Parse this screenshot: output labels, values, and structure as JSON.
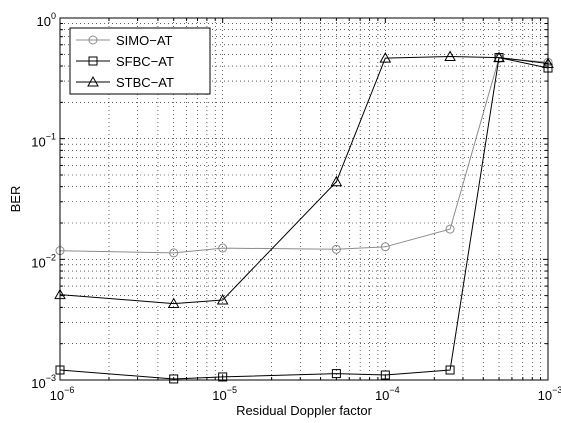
{
  "chart_data": {
    "type": "line",
    "xlabel": "Residual Doppler factor",
    "ylabel": "BER",
    "xscale": "log",
    "yscale": "log",
    "xlim": [
      1e-06,
      0.001
    ],
    "ylim": [
      0.001,
      1
    ],
    "grid": true,
    "legend_position": "top-left",
    "x_ticks": [
      {
        "value": 1e-06,
        "base": "10",
        "exp": "−6"
      },
      {
        "value": 1e-05,
        "base": "10",
        "exp": "−5"
      },
      {
        "value": 0.0001,
        "base": "10",
        "exp": "−4"
      },
      {
        "value": 0.001,
        "base": "10",
        "exp": "−3"
      }
    ],
    "y_ticks": [
      {
        "value": 0.001,
        "base": "10",
        "exp": "−3"
      },
      {
        "value": 0.01,
        "base": "10",
        "exp": "−2"
      },
      {
        "value": 0.1,
        "base": "10",
        "exp": "−1"
      },
      {
        "value": 1,
        "base": "10",
        "exp": "0"
      }
    ],
    "series": [
      {
        "name": "SIMO−AT",
        "marker": "circle",
        "color": "#8c8c8c",
        "x": [
          1e-06,
          5e-06,
          1e-05,
          5e-05,
          0.0001,
          0.00025,
          0.0005,
          0.001
        ],
        "y": [
          0.0118,
          0.0113,
          0.0124,
          0.0121,
          0.0127,
          0.0178,
          0.465,
          0.43
        ]
      },
      {
        "name": "SFBC−AT",
        "marker": "square",
        "color": "#000000",
        "x": [
          1e-06,
          5e-06,
          1e-05,
          5e-05,
          0.0001,
          0.00025,
          0.0005,
          0.001
        ],
        "y": [
          0.00121,
          0.00102,
          0.00106,
          0.00113,
          0.0011,
          0.00121,
          0.47,
          0.385
        ]
      },
      {
        "name": "STBC−AT",
        "marker": "triangle",
        "color": "#000000",
        "x": [
          1e-06,
          5e-06,
          1e-05,
          5e-05,
          0.0001,
          0.00025,
          0.0005,
          0.001
        ],
        "y": [
          0.0051,
          0.0043,
          0.0046,
          0.044,
          0.465,
          0.48,
          0.47,
          0.42
        ]
      }
    ]
  }
}
